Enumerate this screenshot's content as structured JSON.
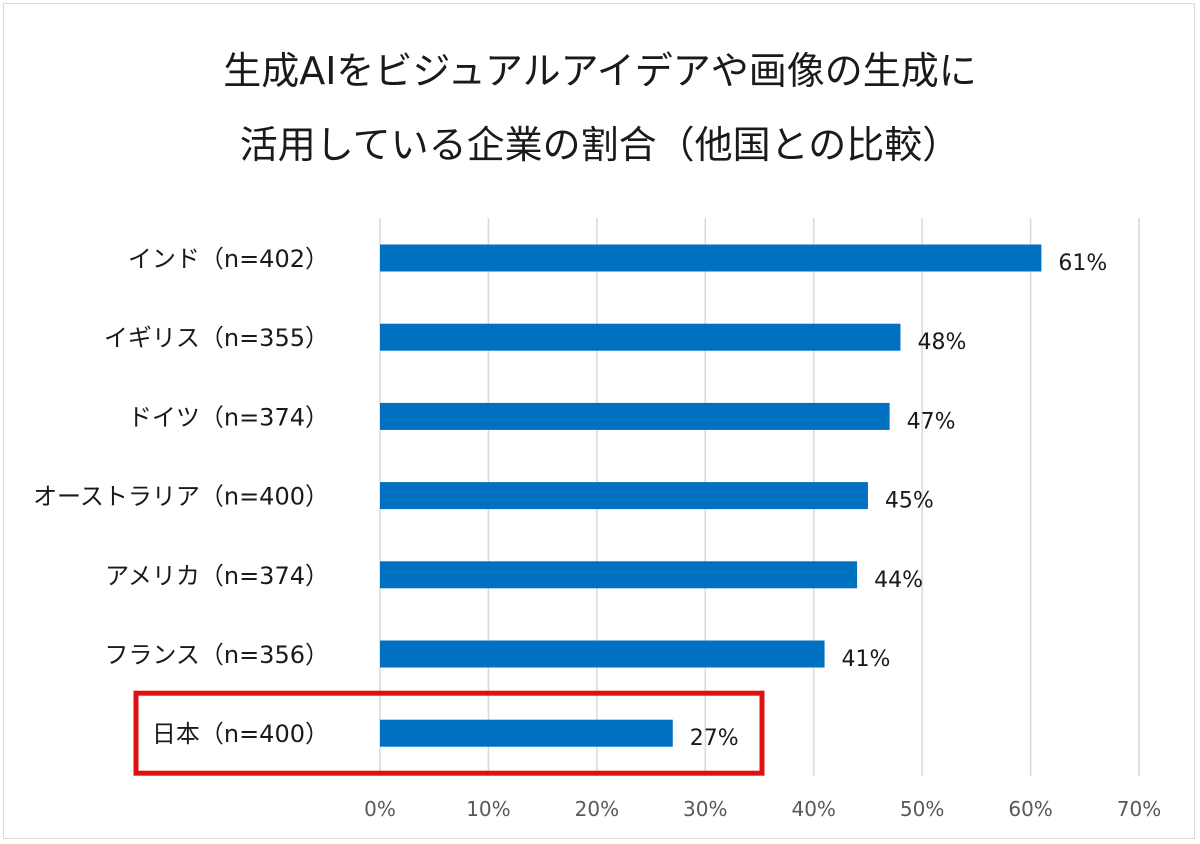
{
  "chart_data": {
    "type": "bar",
    "orientation": "horizontal",
    "title_lines": [
      "生成AIをビジュアルアイデアや画像の生成に",
      "活用している企業の割合（他国との比較）"
    ],
    "categories": [
      "インド（n=402）",
      "イギリス（n=355）",
      "ドイツ（n=374）",
      "オーストラリア（n=400）",
      "アメリカ（n=374）",
      "フランス（n=356）",
      "日本（n=400）"
    ],
    "values": [
      61,
      48,
      47,
      45,
      44,
      41,
      27
    ],
    "value_labels": [
      "61%",
      "48%",
      "47%",
      "45%",
      "44%",
      "41%",
      "27%"
    ],
    "xlim": [
      0,
      70
    ],
    "x_ticks": [
      0,
      10,
      20,
      30,
      40,
      50,
      60,
      70
    ],
    "x_tick_labels": [
      "0%",
      "10%",
      "20%",
      "30%",
      "40%",
      "50%",
      "60%",
      "70%"
    ],
    "grid": "vertical",
    "bar_color": "#0070c0",
    "highlight": {
      "category": "日本（n=400）",
      "color": "#e01010"
    }
  }
}
